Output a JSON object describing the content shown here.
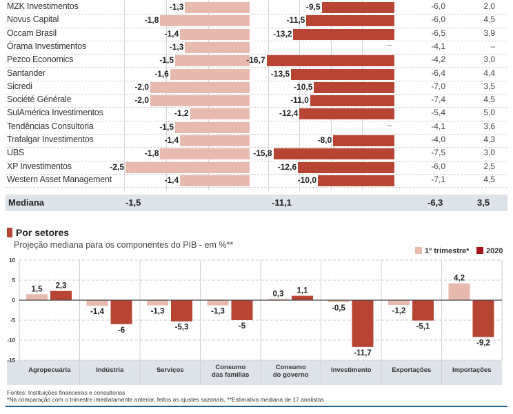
{
  "table": {
    "rows": [
      {
        "name": "MZK Investimentos",
        "q1": -1.3,
        "q1_label": "-1,3",
        "y2020": -9.5,
        "y2020_label": "-9,5",
        "c3": "-6,0",
        "c4": "2,0"
      },
      {
        "name": "Novus Capital",
        "q1": -1.8,
        "q1_label": "-1,8",
        "y2020": -11.5,
        "y2020_label": "-11,5",
        "c3": "-6,0",
        "c4": "4,5"
      },
      {
        "name": "Occam Brasil",
        "q1": -1.4,
        "q1_label": "-1,4",
        "y2020": -13.2,
        "y2020_label": "-13,2",
        "c3": "-6,5",
        "c4": "3,9"
      },
      {
        "name": "Órama Investimentos",
        "q1": -1.3,
        "q1_label": "-1,3",
        "y2020": null,
        "y2020_label": "–",
        "c3": "-4,1",
        "c4": "–"
      },
      {
        "name": "Pezco Economics",
        "q1": -1.5,
        "q1_label": "-1,5",
        "y2020": -16.7,
        "y2020_label": "-16,7",
        "c3": "-4,2",
        "c4": "3,0"
      },
      {
        "name": "Santander",
        "q1": -1.6,
        "q1_label": "-1,6",
        "y2020": -13.5,
        "y2020_label": "-13,5",
        "c3": "-6,4",
        "c4": "4,4"
      },
      {
        "name": "Sicredi",
        "q1": -2.0,
        "q1_label": "-2,0",
        "y2020": -10.5,
        "y2020_label": "-10,5",
        "c3": "-7,0",
        "c4": "3,5"
      },
      {
        "name": "Société Générale",
        "q1": -2.0,
        "q1_label": "-2,0",
        "y2020": -11.0,
        "y2020_label": "-11,0",
        "c3": "-7,4",
        "c4": "4,5"
      },
      {
        "name": "SulAmérica Investimentos",
        "q1": -1.2,
        "q1_label": "-1,2",
        "y2020": -12.4,
        "y2020_label": "-12,4",
        "c3": "-5,4",
        "c4": "5,0"
      },
      {
        "name": "Tendências Consultoria",
        "q1": -1.5,
        "q1_label": "-1,5",
        "y2020": null,
        "y2020_label": "–",
        "c3": "-4,1",
        "c4": "3,6"
      },
      {
        "name": "Trafalgar Investimentos",
        "q1": -1.4,
        "q1_label": "-1,4",
        "y2020": -8.0,
        "y2020_label": "-8,0",
        "c3": "-4,0",
        "c4": "4,3"
      },
      {
        "name": "UBS",
        "q1": -1.8,
        "q1_label": "-1,8",
        "y2020": -15.8,
        "y2020_label": "-15,8",
        "c3": "-7,5",
        "c4": "3,0"
      },
      {
        "name": "XP Investimentos",
        "q1": -2.5,
        "q1_label": "-2,5",
        "y2020": -12.6,
        "y2020_label": "-12,6",
        "c3": "-6,0",
        "c4": "2,5"
      },
      {
        "name": "Western Asset Management",
        "q1": -1.4,
        "q1_label": "-1,4",
        "y2020": -10.0,
        "y2020_label": "-10,0",
        "c3": "-7,1",
        "c4": "4,5"
      }
    ],
    "median": {
      "label": "Mediana",
      "q1": "-1,5",
      "y2020": "-11,1",
      "c3": "-6,3",
      "c4": "3,5"
    }
  },
  "section": {
    "title": "Por setores",
    "subtitle": "Projeção mediana para os componentes do PIB - em %**"
  },
  "legend": {
    "q1": "1º trimestre*",
    "y2020": "2020"
  },
  "colors": {
    "q1": "#e8b9ad",
    "y2020": "#b84434",
    "axis_band": "#dde3e8"
  },
  "chart_data": {
    "type": "bar",
    "title": "Por setores",
    "subtitle": "Projeção mediana para os componentes do PIB - em %**",
    "categories": [
      "Agropecuária",
      "Indústria",
      "Serviços",
      "Consumo das famílias",
      "Consumo do governo",
      "Investimento",
      "Exportações",
      "Importações"
    ],
    "category_lines": [
      [
        "Agropecuária"
      ],
      [
        "Indústria"
      ],
      [
        "Serviços"
      ],
      [
        "Consumo",
        "das famílias"
      ],
      [
        "Consumo",
        "do governo"
      ],
      [
        "Investimento"
      ],
      [
        "Exportações"
      ],
      [
        "Importações"
      ]
    ],
    "series": [
      {
        "name": "1º trimestre*",
        "values": [
          1.5,
          -1.4,
          -1.3,
          -1.3,
          0.3,
          -0.5,
          -1.2,
          4.2
        ],
        "labels": [
          "1,5",
          "-1,4",
          "-1,3",
          "-1,3",
          "0,3",
          "-0,5",
          "-1,2",
          "4,2"
        ]
      },
      {
        "name": "2020",
        "values": [
          2.3,
          -6,
          -5.3,
          -5,
          1.1,
          -11.7,
          -5.1,
          -9.2
        ],
        "labels": [
          "2,3",
          "-6",
          "-5,3",
          "-5",
          "1,1",
          "-11,7",
          "-5,1",
          "-9,2"
        ]
      }
    ],
    "yticks": [
      10,
      5,
      0,
      -5,
      -10,
      -15
    ],
    "ylim": [
      -15,
      10
    ],
    "grid": true,
    "legend_position": "top-right",
    "xlabel": "",
    "ylabel": ""
  },
  "footer": {
    "sources": "Fontes: Instituições financeiras e consultorias",
    "notes": "*Na comparação com o trimestre imediatamente anterior, feitos os ajustes sazonais, **Estimativa mediana de 17 analistas"
  }
}
